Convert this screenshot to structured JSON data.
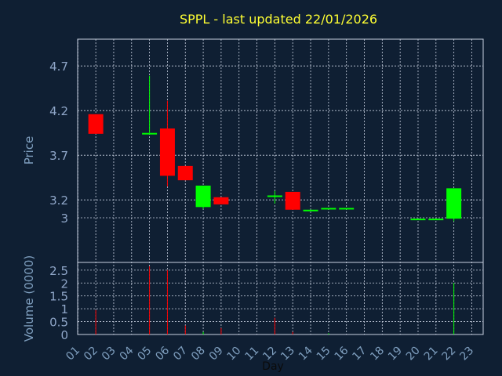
{
  "chart_data": {
    "type": "candlestick",
    "title": "SPPL - last updated 22/01/2026",
    "xlabel": "Day",
    "price_ylabel": "Price",
    "volume_ylabel": "Volume (0000)",
    "x_ticks": [
      "01",
      "02",
      "03",
      "04",
      "05",
      "06",
      "07",
      "08",
      "09",
      "10",
      "11",
      "12",
      "13",
      "14",
      "15",
      "16",
      "17",
      "18",
      "19",
      "20",
      "21",
      "22",
      "23"
    ],
    "price_ticks": [
      "3",
      "3.2",
      "3.7",
      "4.2",
      "4.7"
    ],
    "volume_ticks": [
      "0",
      "0.5",
      "1",
      "1.5",
      "2",
      "2.5"
    ],
    "price_range": [
      2.5,
      5.0
    ],
    "volume_range": [
      0,
      2.8
    ],
    "grid": true,
    "colors": {
      "up": "#00ff00",
      "down": "#ff0000",
      "background": "#0f1f33",
      "grid": "#c8d0e0",
      "title": "#ffff33",
      "axis_text": "#7f9fbf"
    },
    "candles": [
      {
        "day": 2,
        "open": 4.16,
        "high": 4.16,
        "low": 3.94,
        "close": 3.94
      },
      {
        "day": 5,
        "open": 3.95,
        "high": 4.59,
        "low": 3.95,
        "close": 3.95
      },
      {
        "day": 6,
        "open": 4.0,
        "high": 4.31,
        "low": 3.35,
        "close": 3.47
      },
      {
        "day": 7,
        "open": 3.58,
        "high": 3.58,
        "low": 3.42,
        "close": 3.42
      },
      {
        "day": 8,
        "open": 3.12,
        "high": 3.36,
        "low": 3.1,
        "close": 3.36
      },
      {
        "day": 9,
        "open": 3.23,
        "high": 3.23,
        "low": 3.15,
        "close": 3.15
      },
      {
        "day": 12,
        "open": 3.25,
        "high": 3.3,
        "low": 3.16,
        "close": 3.25
      },
      {
        "day": 13,
        "open": 3.29,
        "high": 3.29,
        "low": 3.09,
        "close": 3.09
      },
      {
        "day": 14,
        "open": 3.08,
        "high": 3.09,
        "low": 3.08,
        "close": 3.09
      },
      {
        "day": 15,
        "open": 3.1,
        "high": 3.11,
        "low": 3.1,
        "close": 3.11
      },
      {
        "day": 16,
        "open": 3.1,
        "high": 3.11,
        "low": 3.1,
        "close": 3.11
      },
      {
        "day": 20,
        "open": 2.98,
        "high": 2.99,
        "low": 2.98,
        "close": 2.99
      },
      {
        "day": 21,
        "open": 2.98,
        "high": 2.99,
        "low": 2.98,
        "close": 2.99
      },
      {
        "day": 22,
        "open": 2.99,
        "high": 3.33,
        "low": 2.96,
        "close": 3.33
      }
    ],
    "volume": [
      {
        "day": 2,
        "value": 0.95,
        "dir": "down"
      },
      {
        "day": 5,
        "value": 2.65,
        "dir": "down"
      },
      {
        "day": 6,
        "value": 2.5,
        "dir": "down"
      },
      {
        "day": 7,
        "value": 0.35,
        "dir": "down"
      },
      {
        "day": 8,
        "value": 0.1,
        "dir": "up"
      },
      {
        "day": 9,
        "value": 0.25,
        "dir": "down"
      },
      {
        "day": 12,
        "value": 0.65,
        "dir": "down"
      },
      {
        "day": 13,
        "value": 0.1,
        "dir": "down"
      },
      {
        "day": 15,
        "value": 0.05,
        "dir": "up"
      },
      {
        "day": 22,
        "value": 2.0,
        "dir": "up"
      }
    ]
  }
}
